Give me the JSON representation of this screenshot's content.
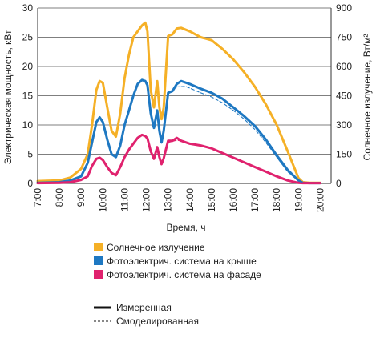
{
  "chart_data": {
    "type": "line",
    "x_axis": {
      "label": "Время, ч",
      "range": [
        7,
        20.5
      ],
      "ticks": [
        7,
        8,
        9,
        10,
        11,
        12,
        13,
        14,
        15,
        16,
        17,
        18,
        19,
        20
      ],
      "tick_labels": [
        "7:00",
        "8:00",
        "9:00",
        "10:00",
        "11:00",
        "12:00",
        "13:00",
        "14:00",
        "15:00",
        "16:00",
        "17:00",
        "18:00",
        "19:00",
        "20:00"
      ]
    },
    "y_left": {
      "label": "Электрическая мощность, кВт",
      "range": [
        0,
        30
      ],
      "ticks": [
        0,
        5,
        10,
        15,
        20,
        25,
        30
      ]
    },
    "y_right": {
      "label": "Солнечное излучение, Вт/м²",
      "range": [
        0,
        900
      ],
      "ticks": [
        0,
        150,
        300,
        450,
        600,
        750,
        900
      ]
    },
    "grid": "horizontal",
    "legend_position": "bottom",
    "series": [
      {
        "name": "Солнечное излучение",
        "color": "#F5B026",
        "axis": "right",
        "style": "solid",
        "x": [
          7.0,
          8.0,
          8.5,
          9.0,
          9.3,
          9.5,
          9.7,
          9.85,
          10.0,
          10.2,
          10.4,
          10.6,
          10.8,
          11.0,
          11.2,
          11.4,
          11.6,
          11.8,
          11.95,
          12.05,
          12.2,
          12.35,
          12.5,
          12.6,
          12.7,
          12.8,
          13.0,
          13.2,
          13.4,
          13.6,
          14.0,
          14.5,
          15.0,
          15.5,
          16.0,
          16.5,
          17.0,
          17.5,
          18.0,
          18.5,
          19.0,
          19.2,
          19.5,
          20.0
        ],
        "y": [
          12,
          15,
          30,
          75,
          150,
          300,
          480,
          525,
          516,
          390,
          270,
          240,
          360,
          540,
          660,
          750,
          780,
          810,
          825,
          780,
          480,
          390,
          525,
          390,
          330,
          390,
          756,
          765,
          795,
          798,
          780,
          750,
          735,
          690,
          636,
          570,
          495,
          405,
          300,
          165,
          27,
          6,
          3,
          3
        ]
      },
      {
        "name": "Фотоэлектрич. система на крыше",
        "color": "#1E78C2",
        "axis": "left",
        "style": "solid",
        "x": [
          7.0,
          8.0,
          8.5,
          9.0,
          9.3,
          9.5,
          9.7,
          9.85,
          10.0,
          10.2,
          10.4,
          10.6,
          10.8,
          11.0,
          11.2,
          11.4,
          11.6,
          11.8,
          11.95,
          12.05,
          12.2,
          12.35,
          12.5,
          12.6,
          12.7,
          12.8,
          13.0,
          13.2,
          13.4,
          13.6,
          14.0,
          14.5,
          15.0,
          15.5,
          16.0,
          16.5,
          17.0,
          17.5,
          18.0,
          18.5,
          19.0,
          19.2,
          19.5,
          20.0
        ],
        "y": [
          0.1,
          0.2,
          0.5,
          1.2,
          3.5,
          7.0,
          10.5,
          11.3,
          10.5,
          7.5,
          5.0,
          4.5,
          6.5,
          10.0,
          12.5,
          15.0,
          17.0,
          17.7,
          17.5,
          16.8,
          12.0,
          9.5,
          12.5,
          9.0,
          7.0,
          9.0,
          15.5,
          15.8,
          17.0,
          17.5,
          17.0,
          16.2,
          15.5,
          14.5,
          13.0,
          11.5,
          9.8,
          7.5,
          4.8,
          2.3,
          0.5,
          0.1,
          0.05,
          0.05
        ]
      },
      {
        "name": "Фотоэлектрич. система на фасаде",
        "color": "#E0226E",
        "axis": "left",
        "style": "solid",
        "x": [
          7.0,
          8.0,
          8.5,
          9.0,
          9.3,
          9.5,
          9.7,
          9.85,
          10.0,
          10.2,
          10.4,
          10.6,
          10.8,
          11.0,
          11.2,
          11.4,
          11.6,
          11.8,
          11.95,
          12.05,
          12.2,
          12.35,
          12.5,
          12.6,
          12.7,
          12.8,
          13.0,
          13.2,
          13.4,
          13.6,
          14.0,
          14.5,
          15.0,
          15.5,
          16.0,
          16.5,
          17.0,
          17.5,
          18.0,
          18.5,
          19.0,
          19.2,
          19.5,
          20.0
        ],
        "y": [
          0.05,
          0.1,
          0.2,
          0.6,
          1.2,
          3.0,
          4.2,
          4.4,
          4.0,
          2.8,
          1.8,
          1.4,
          2.8,
          4.5,
          5.8,
          6.8,
          7.8,
          8.3,
          8.1,
          7.7,
          5.5,
          4.2,
          6.2,
          4.5,
          3.3,
          4.3,
          7.3,
          7.3,
          7.8,
          7.3,
          6.8,
          6.5,
          6.0,
          5.2,
          4.4,
          3.6,
          2.8,
          2.0,
          1.2,
          0.5,
          0.1,
          0.05,
          0.05,
          0.05
        ]
      },
      {
        "name": "Фотоэлектрич. система на крыше",
        "color": "#1E78C2",
        "axis": "left",
        "style": "dashed",
        "x": [
          13.0,
          13.4,
          13.8,
          14.0,
          14.5,
          15.0,
          15.5,
          16.0,
          16.5,
          17.0,
          17.5,
          18.0,
          18.5,
          19.0,
          19.2
        ],
        "y": [
          15.3,
          16.5,
          16.6,
          16.3,
          15.5,
          14.8,
          13.8,
          12.5,
          11.0,
          9.2,
          7.0,
          4.5,
          2.0,
          0.4,
          0.1
        ]
      },
      {
        "name": "Фотоэлектрич. система на фасаде",
        "color": "#E0226E",
        "axis": "left",
        "style": "dashed",
        "x": [
          13.0,
          13.4,
          13.8,
          14.0,
          14.5,
          15.0,
          15.5,
          16.0,
          16.5,
          17.0,
          17.5,
          18.0,
          18.5,
          19.0,
          19.2
        ],
        "y": [
          7.0,
          7.4,
          7.1,
          6.8,
          6.4,
          5.9,
          5.1,
          4.3,
          3.5,
          2.7,
          1.9,
          1.1,
          0.4,
          0.1,
          0.05
        ]
      }
    ],
    "legend": {
      "colors": [
        {
          "label": "Солнечное излучение",
          "color": "#F5B026"
        },
        {
          "label": "Фотоэлектрич. система на крыше",
          "color": "#1E78C2"
        },
        {
          "label": "Фотоэлектрич. система на фасаде",
          "color": "#E0226E"
        }
      ],
      "styles": [
        {
          "label": "Измеренная",
          "style": "solid"
        },
        {
          "label": "Смоделированная",
          "style": "dashed"
        }
      ]
    }
  }
}
